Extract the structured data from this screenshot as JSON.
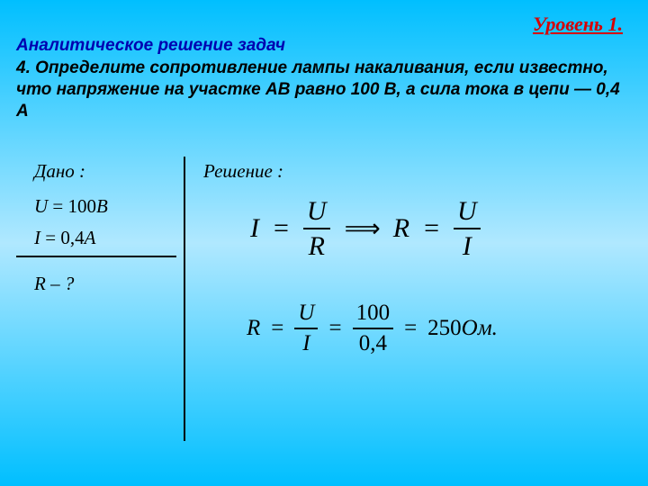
{
  "header": {
    "level": "Уровень 1.",
    "subtitle": "Аналитическое решение задач",
    "problem": "4. Определите сопротивление лампы накаливания, если известно, что напряжение на участке АВ равно 100 В, а сила тока в цепи — 0,4 А"
  },
  "given": {
    "label": "Дано :",
    "u_var": "U",
    "u_eq": " = 100",
    "u_unit": "B",
    "i_var": "I",
    "i_eq": " = 0,4",
    "i_unit": "A"
  },
  "find": {
    "text": "R – ?"
  },
  "solution": {
    "label": "Решение :",
    "eq1": {
      "lhs_var": "I",
      "equals": "=",
      "frac1_num": "U",
      "frac1_den": "R",
      "arrow": "⟹",
      "rhs_var": "R",
      "frac2_num": "U",
      "frac2_den": "I"
    },
    "eq2": {
      "lhs_var": "R",
      "equals": "=",
      "frac1_num": "U",
      "frac1_den": "I",
      "frac2_num": "100",
      "frac2_den": "0,4",
      "result": "250",
      "unit": "Ом."
    }
  },
  "style": {
    "bg_gradient_top": "#00bfff",
    "bg_gradient_mid": "#b0e8ff",
    "level_color": "#d60000",
    "subtitle_color": "#0000b0",
    "text_color": "#000000",
    "title_fontsize": 22,
    "body_fontsize": 19,
    "math_fontsize_lg": 30,
    "math_fontsize_md": 25,
    "math_fontsize_sm": 21
  }
}
